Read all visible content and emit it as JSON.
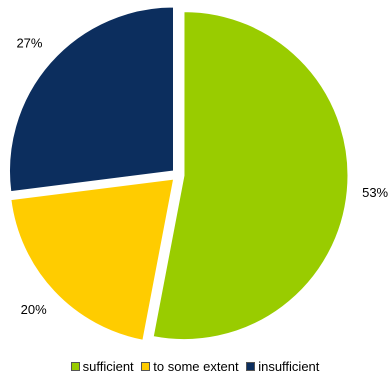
{
  "chart_data": {
    "type": "pie",
    "categories": [
      "sufficient",
      "to some extent",
      "insufficient"
    ],
    "values": [
      53,
      20,
      27
    ],
    "value_labels": [
      "53%",
      "20%",
      "27%"
    ],
    "colors": [
      "#99cc00",
      "#ffcc00",
      "#0c2e5e"
    ],
    "exploded": true,
    "legend_position": "bottom",
    "title": ""
  },
  "legend": {
    "items": [
      {
        "label": "sufficient",
        "color": "#99cc00"
      },
      {
        "label": "to some extent",
        "color": "#ffcc00"
      },
      {
        "label": "insufficient",
        "color": "#0c2e5e"
      }
    ]
  }
}
